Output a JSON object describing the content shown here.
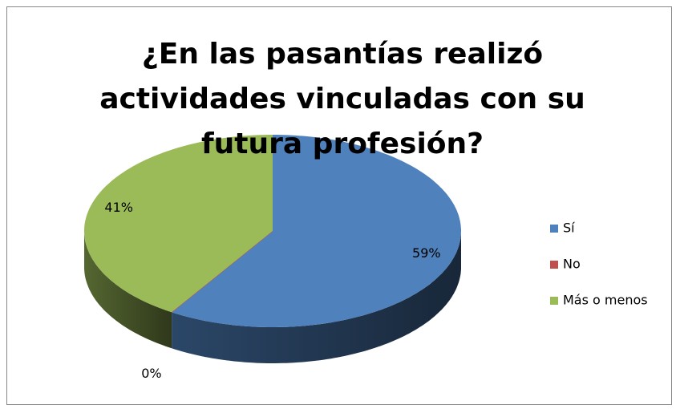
{
  "chart_data": {
    "type": "pie",
    "title": "¿En las pasantías realizó actividades vinculadas con su futura profesión?",
    "categories": [
      "Sí",
      "No",
      "Más o menos"
    ],
    "values": [
      59,
      0,
      41
    ],
    "value_labels": [
      "59%",
      "0%",
      "41%"
    ],
    "colors": [
      "#4f81bd",
      "#c0504d",
      "#9bbb59"
    ],
    "legend": "right"
  }
}
